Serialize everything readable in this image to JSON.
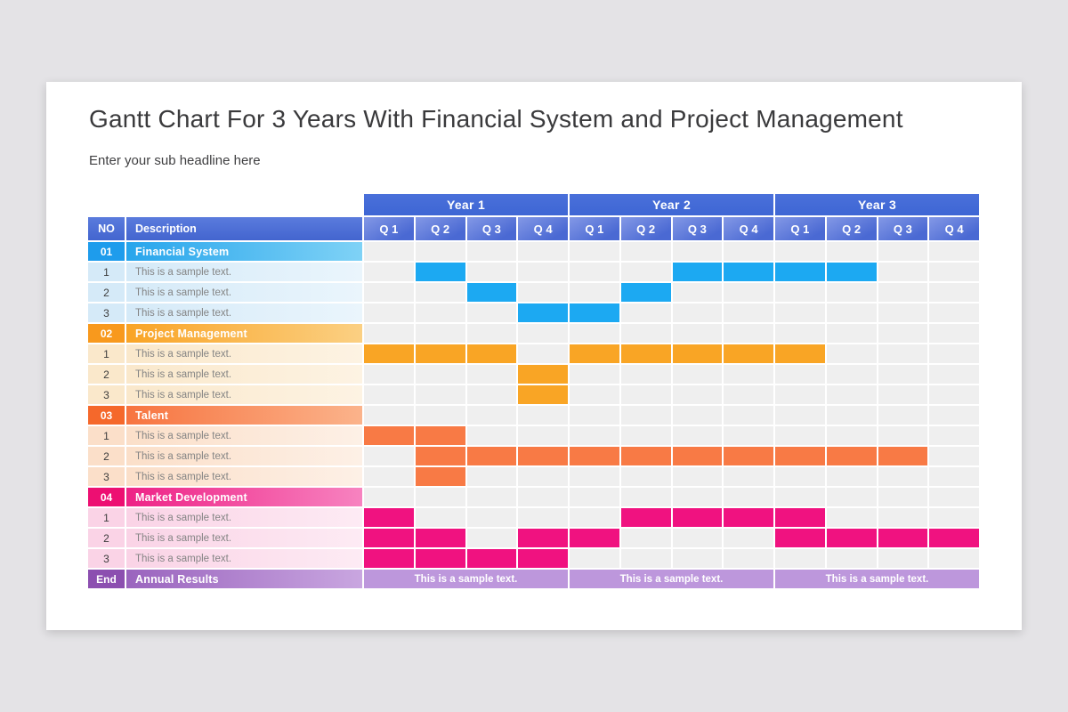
{
  "page": {
    "title": "Gantt Chart For 3 Years With Financial System and Project Management",
    "subtitle": "Enter your sub headline here"
  },
  "table": {
    "no_header": "NO",
    "description_header": "Description"
  },
  "colors": {
    "page_bg": "#E4E3E6",
    "card_bg": "#FFFFFF",
    "title_text": "#3A3A3C",
    "header_blue_top": "#5A7BDD",
    "header_blue_bottom": "#4365CF",
    "year_bar_top": "#4A70DA",
    "year_bar": "#3E66D4",
    "quarter_grad_light": "#8398E6",
    "quarter_grad_dark": "#4A69D3",
    "grid_cell": "#EFEFEF"
  },
  "chart_data": {
    "type": "gantt",
    "title": "Gantt Chart For 3 Years With Financial System and Project Management",
    "years": [
      "Year 1",
      "Year 2",
      "Year 3"
    ],
    "quarters": [
      "Q 1",
      "Q 2",
      "Q 3",
      "Q 4"
    ],
    "total_quarters": 12,
    "unit": "bars given as inclusive [start,end] quarter indexes 1-12 across the 3 years",
    "sections": [
      {
        "no": "01",
        "name": "Financial System",
        "bar_color": "#1CA9F2",
        "no_bg": "#1E9CEC",
        "grad": [
          "#27A5EC",
          "#7FD2F6"
        ],
        "tint": "#D5EAF8",
        "tint_light": "#EAF5FC",
        "tasks": [
          {
            "no": "1",
            "label": "This is a sample text.",
            "bars": [
              [
                2,
                2
              ],
              [
                7,
                10
              ]
            ]
          },
          {
            "no": "2",
            "label": "This is a sample text.",
            "bars": [
              [
                3,
                3
              ],
              [
                6,
                6
              ]
            ]
          },
          {
            "no": "3",
            "label": "This is a sample text.",
            "bars": [
              [
                4,
                5
              ]
            ]
          }
        ]
      },
      {
        "no": "02",
        "name": "Project Management",
        "bar_color": "#F9A525",
        "no_bg": "#F8991D",
        "grad": [
          "#F9A426",
          "#FBD083"
        ],
        "tint": "#FAE8CB",
        "tint_light": "#FDF3E3",
        "tasks": [
          {
            "no": "1",
            "label": "This is a sample text.",
            "bars": [
              [
                1,
                3
              ],
              [
                5,
                9
              ]
            ]
          },
          {
            "no": "2",
            "label": "This is a sample text.",
            "bars": [
              [
                4,
                4
              ]
            ]
          },
          {
            "no": "3",
            "label": "This is a sample text.",
            "bars": [
              [
                4,
                4
              ]
            ]
          }
        ]
      },
      {
        "no": "03",
        "name": "Talent",
        "bar_color": "#F87A45",
        "no_bg": "#F5682B",
        "grad": [
          "#F77440",
          "#FBB38B"
        ],
        "tint": "#FBDFC9",
        "tint_light": "#FDF0E6",
        "tasks": [
          {
            "no": "1",
            "label": "This is a sample text.",
            "bars": [
              [
                1,
                2
              ]
            ]
          },
          {
            "no": "2",
            "label": "This is a sample text.",
            "bars": [
              [
                2,
                11
              ]
            ]
          },
          {
            "no": "3",
            "label": "This is a sample text.",
            "bars": [
              [
                2,
                2
              ]
            ]
          }
        ]
      },
      {
        "no": "04",
        "name": "Market Development",
        "bar_color": "#F01280",
        "no_bg": "#ED0F72",
        "grad": [
          "#EE2286",
          "#F783C0"
        ],
        "tint": "#FAD3E6",
        "tint_light": "#FDEBF4",
        "tasks": [
          {
            "no": "1",
            "label": "This is a sample text.",
            "bars": [
              [
                1,
                1
              ],
              [
                6,
                9
              ]
            ]
          },
          {
            "no": "2",
            "label": "This is a sample text.",
            "bars": [
              [
                1,
                2
              ],
              [
                4,
                5
              ],
              [
                9,
                12
              ]
            ]
          },
          {
            "no": "3",
            "label": "This is a sample text.",
            "bars": [
              [
                1,
                4
              ]
            ]
          }
        ]
      }
    ],
    "end_row": {
      "no": "End",
      "name": "Annual Results",
      "no_bg": "#8C4FB0",
      "grad": [
        "#9A64BE",
        "#C9A6E0"
      ],
      "cell_bg": "#BD97DC",
      "spans": [
        [
          1,
          4
        ],
        [
          5,
          8
        ],
        [
          9,
          12
        ]
      ],
      "cells": [
        "This is a sample text.",
        "This is a sample text.",
        "This is a sample text."
      ]
    }
  }
}
